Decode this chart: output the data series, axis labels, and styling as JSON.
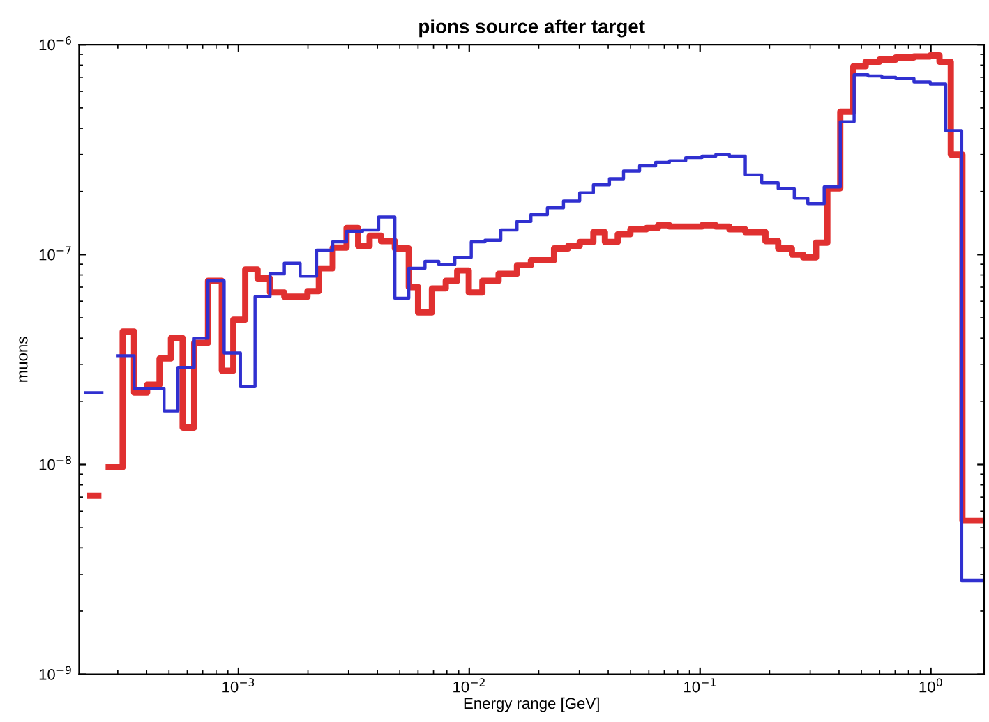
{
  "chart_data": {
    "type": "step",
    "title": "pions source after target",
    "xlabel": "Energy range [GeV]",
    "ylabel": "muons",
    "log": "xy",
    "grid": false,
    "xlim": [
      0.000204,
      1.7
    ],
    "ylim": [
      1e-09,
      1e-06
    ],
    "xticks": [
      {
        "value": 0.001,
        "label": "10$^{−3}$"
      },
      {
        "value": 0.01,
        "label": "10$^{−2}$"
      },
      {
        "value": 0.1,
        "label": "10$^{−1}$"
      },
      {
        "value": 1,
        "label": "10$^{0}$"
      }
    ],
    "yticks": [
      {
        "value": 1e-09,
        "label": "10$^{−9}$"
      },
      {
        "value": 1e-08,
        "label": "10$^{−8}$"
      },
      {
        "value": 1e-07,
        "label": "10$^{−7}$"
      },
      {
        "value": 1e-06,
        "label": "10$^{−6}$"
      }
    ],
    "series": [
      {
        "color": "#e03030",
        "x": [
          0.000228,
          0.000247,
          0.000274,
          0.000315,
          0.000353,
          0.000402,
          0.000455,
          0.00051,
          0.000573,
          0.000643,
          0.000738,
          0.000847,
          0.00095,
          0.00107,
          0.00121,
          0.00137,
          0.00158,
          0.00199,
          0.00223,
          0.00256,
          0.00294,
          0.0033,
          0.0037,
          0.00415,
          0.00476,
          0.00547,
          0.006,
          0.00689,
          0.00791,
          0.00887,
          0.00995,
          0.0114,
          0.0134,
          0.0161,
          0.0185,
          0.0233,
          0.0268,
          0.0301,
          0.0345,
          0.0387,
          0.044,
          0.0499,
          0.0586,
          0.0658,
          0.0737,
          0.0867,
          0.102,
          0.117,
          0.134,
          0.157,
          0.192,
          0.218,
          0.25,
          0.28,
          0.318,
          0.356,
          0.405,
          0.461,
          0.522,
          0.599,
          0.704,
          0.845,
          0.994,
          1.09,
          1.22,
          1.37,
          1.66
        ],
        "values": [
          7.1e-09,
          null,
          9.7e-09,
          4.3e-08,
          2.2e-08,
          2.4e-08,
          3.2e-08,
          4e-08,
          1.5e-08,
          3.8e-08,
          7.5e-08,
          2.8e-08,
          4.9e-08,
          8.5e-08,
          7.7e-08,
          6.6e-08,
          6.3e-08,
          6.7e-08,
          8.6e-08,
          1.08e-07,
          1.34e-07,
          1.1e-07,
          1.23e-07,
          1.16e-07,
          1.07e-07,
          7e-08,
          5.3e-08,
          6.9e-08,
          7.5e-08,
          8.4e-08,
          6.6e-08,
          7.5e-08,
          8.1e-08,
          8.9e-08,
          9.4e-08,
          1.07e-07,
          1.1e-07,
          1.15e-07,
          1.28e-07,
          1.15e-07,
          1.25e-07,
          1.32e-07,
          1.34e-07,
          1.38e-07,
          1.36e-07,
          1.36e-07,
          1.38e-07,
          1.36e-07,
          1.32e-07,
          1.28e-07,
          1.16e-07,
          1.07e-07,
          1e-07,
          9.7e-08,
          1.14e-07,
          2.07e-07,
          4.8e-07,
          7.9e-07,
          8.3e-07,
          8.5e-07,
          8.7e-07,
          8.8e-07,
          8.9e-07,
          8.3e-07,
          3e-07,
          5.4e-09,
          5.4e-09
        ]
      },
      {
        "color": "#3030d0",
        "x": [
          0.000218,
          0.000256,
          0.000301,
          0.000353,
          0.000476,
          0.000547,
          0.000643,
          0.000738,
          0.000867,
          0.00102,
          0.00118,
          0.00137,
          0.00158,
          0.00185,
          0.00218,
          0.00256,
          0.00294,
          0.00345,
          0.00405,
          0.00476,
          0.00547,
          0.00643,
          0.00738,
          0.00866,
          0.0102,
          0.0117,
          0.0137,
          0.0161,
          0.0185,
          0.0218,
          0.0256,
          0.0301,
          0.0345,
          0.0405,
          0.0466,
          0.0547,
          0.0642,
          0.0737,
          0.0867,
          0.102,
          0.117,
          0.134,
          0.157,
          0.185,
          0.218,
          0.256,
          0.293,
          0.345,
          0.405,
          0.465,
          0.534,
          0.613,
          0.704,
          0.845,
          0.994,
          1.16,
          1.36,
          1.66
        ],
        "values": [
          2.2e-08,
          null,
          3.3e-08,
          2.3e-08,
          1.8e-08,
          2.9e-08,
          4e-08,
          7.5e-08,
          3.4e-08,
          2.35e-08,
          6.3e-08,
          8.1e-08,
          9.1e-08,
          7.9e-08,
          1.05e-07,
          1.15e-07,
          1.29e-07,
          1.31e-07,
          1.51e-07,
          6.2e-08,
          8.6e-08,
          9.3e-08,
          9e-08,
          9.7e-08,
          1.15e-07,
          1.17e-07,
          1.31e-07,
          1.44e-07,
          1.55e-07,
          1.67e-07,
          1.8e-07,
          1.97e-07,
          2.15e-07,
          2.3e-07,
          2.5e-07,
          2.65e-07,
          2.75e-07,
          2.8e-07,
          2.9e-07,
          2.95e-07,
          3e-07,
          2.95e-07,
          2.4e-07,
          2.2e-07,
          2.06e-07,
          1.86e-07,
          1.75e-07,
          2.1e-07,
          4.3e-07,
          7.2e-07,
          7.1e-07,
          7e-07,
          6.9e-07,
          6.65e-07,
          6.5e-07,
          3.9e-07,
          2.8e-09,
          2.8e-09
        ]
      }
    ]
  }
}
